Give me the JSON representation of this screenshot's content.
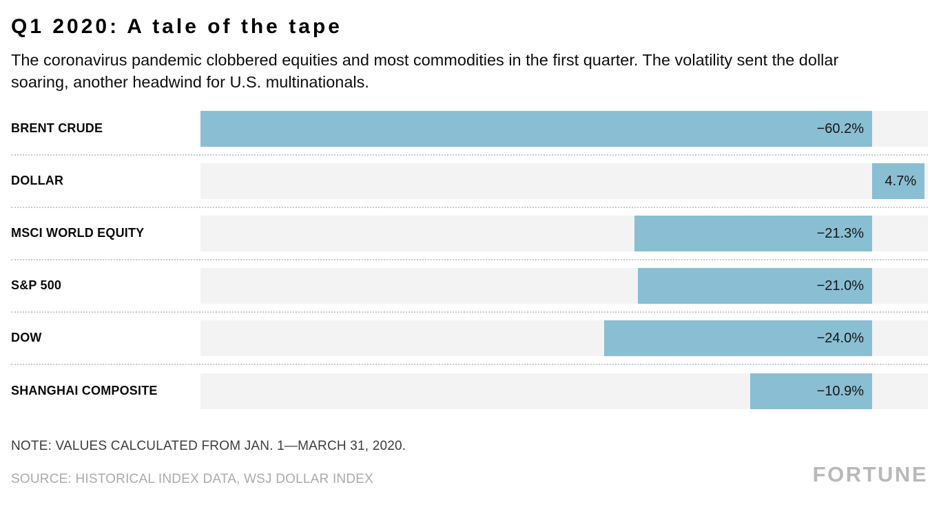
{
  "header": {
    "title": "Q1 2020: A tale of the tape",
    "subtitle": "The coronavirus pandemic clobbered equities and most commodities in the first quarter. The volatility sent the dollar soaring, another headwind for U.S. multinationals."
  },
  "chart_data": {
    "type": "bar",
    "orientation": "horizontal",
    "categories": [
      "BRENT CRUDE",
      "DOLLAR",
      "MSCI WORLD EQUITY",
      "S&P 500",
      "DOW",
      "SHANGHAI COMPOSITE"
    ],
    "values": [
      -60.2,
      4.7,
      -21.3,
      -21.0,
      -24.0,
      -10.9
    ],
    "labels": [
      "−60.2%",
      "4.7%",
      "−21.3%",
      "−21.0%",
      "−24.0%",
      "−10.9%"
    ],
    "xlim": [
      -60.2,
      5.0
    ],
    "bar_color": "#89bed3",
    "track_color": "#f3f3f3",
    "grid": "dotted-row-separators",
    "legend": "none"
  },
  "footer": {
    "note": "NOTE: VALUES CALCULATED FROM JAN. 1—MARCH 31, 2020.",
    "source": "SOURCE: HISTORICAL INDEX DATA, WSJ DOLLAR INDEX",
    "brand": "FORTUNE"
  }
}
